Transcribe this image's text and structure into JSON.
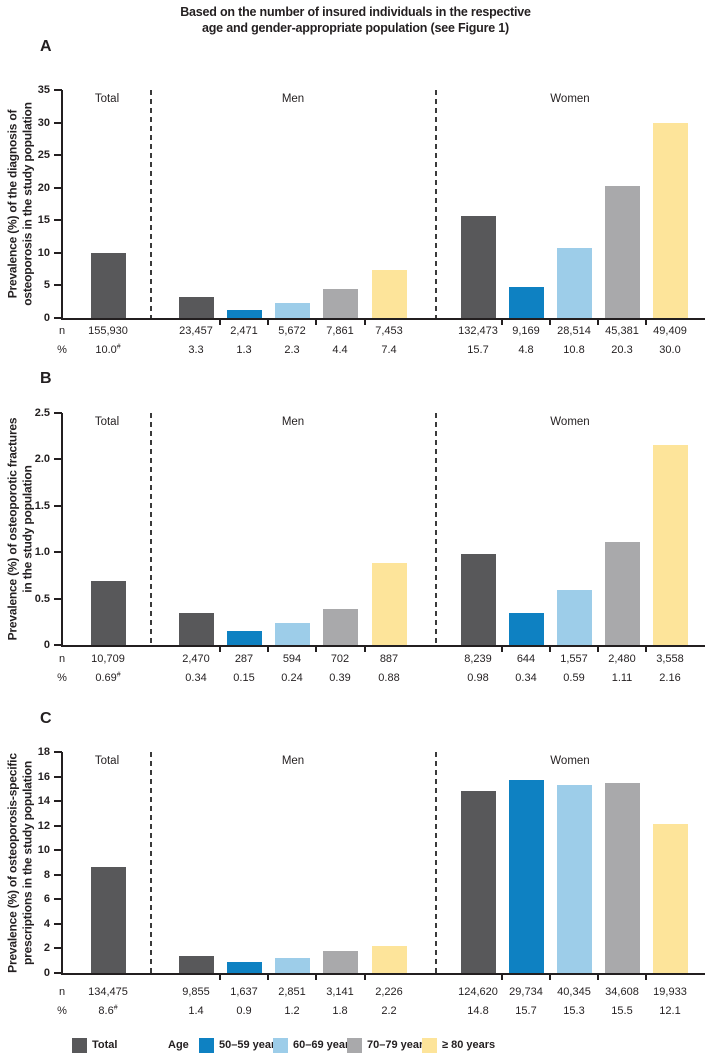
{
  "figure_title": {
    "line1": "Based on the number of insured individuals in the respective",
    "line2": "age and gender-appropriate population (see Figure 1)"
  },
  "colors": {
    "total": "#58585a",
    "age_50_59": "#0e81c2",
    "age_60_69": "#9dcde9",
    "age_70_79": "#a9a9ab",
    "age_80_plus": "#fde49a",
    "axis": "#231f20"
  },
  "row_labels": {
    "n": "n",
    "pct": "%"
  },
  "legend": {
    "total_label": "Total",
    "age_label": "Age",
    "items": [
      {
        "label": "50–59 years",
        "color": "age_50_59"
      },
      {
        "label": "60–69 years",
        "color": "age_60_69"
      },
      {
        "label": "70–79 years",
        "color": "age_70_79"
      },
      {
        "label": "≥ 80 years",
        "color": "age_80_plus"
      }
    ]
  },
  "chart_data": [
    {
      "type": "bar",
      "panel": "A",
      "ylabel": [
        "Prevalence (%) of the diagnosis of",
        "osteoporosis in the study population"
      ],
      "ylim": [
        0,
        35
      ],
      "ytick_values": [
        0,
        5,
        10,
        15,
        20,
        25,
        30,
        35
      ],
      "ytick_labels": [
        "0",
        "5",
        "10",
        "15",
        "20",
        "25",
        "30",
        "35"
      ],
      "groups": [
        {
          "label": "Total",
          "bars": [
            {
              "series": "total",
              "value": 10.0,
              "n": "155,930",
              "pct": "10.0",
              "pct_note": "#"
            }
          ]
        },
        {
          "label": "Men",
          "bars": [
            {
              "series": "total",
              "value": 3.3,
              "n": "23,457",
              "pct": "3.3"
            },
            {
              "series": "age_50_59",
              "value": 1.3,
              "n": "2,471",
              "pct": "1.3"
            },
            {
              "series": "age_60_69",
              "value": 2.3,
              "n": "5,672",
              "pct": "2.3"
            },
            {
              "series": "age_70_79",
              "value": 4.4,
              "n": "7,861",
              "pct": "4.4"
            },
            {
              "series": "age_80_plus",
              "value": 7.4,
              "n": "7,453",
              "pct": "7.4"
            }
          ]
        },
        {
          "label": "Women",
          "bars": [
            {
              "series": "total",
              "value": 15.7,
              "n": "132,473",
              "pct": "15.7"
            },
            {
              "series": "age_50_59",
              "value": 4.8,
              "n": "9,169",
              "pct": "4.8"
            },
            {
              "series": "age_60_69",
              "value": 10.8,
              "n": "28,514",
              "pct": "10.8"
            },
            {
              "series": "age_70_79",
              "value": 20.3,
              "n": "45,381",
              "pct": "20.3"
            },
            {
              "series": "age_80_plus",
              "value": 30.0,
              "n": "49,409",
              "pct": "30.0"
            }
          ]
        }
      ]
    },
    {
      "type": "bar",
      "panel": "B",
      "ylabel": [
        "Prevalence (%) of osteoporotic fractures",
        "in the study population"
      ],
      "ylim": [
        0,
        2.5
      ],
      "ytick_values": [
        0,
        0.5,
        1.0,
        1.5,
        2.0,
        2.5
      ],
      "ytick_labels": [
        "0",
        "0.5",
        "1.0",
        "1.5",
        "2.0",
        "2.5"
      ],
      "groups": [
        {
          "label": "Total",
          "bars": [
            {
              "series": "total",
              "value": 0.69,
              "n": "10,709",
              "pct": "0.69",
              "pct_note": "#"
            }
          ]
        },
        {
          "label": "Men",
          "bars": [
            {
              "series": "total",
              "value": 0.34,
              "n": "2,470",
              "pct": "0.34"
            },
            {
              "series": "age_50_59",
              "value": 0.15,
              "n": "287",
              "pct": "0.15"
            },
            {
              "series": "age_60_69",
              "value": 0.24,
              "n": "594",
              "pct": "0.24"
            },
            {
              "series": "age_70_79",
              "value": 0.39,
              "n": "702",
              "pct": "0.39"
            },
            {
              "series": "age_80_plus",
              "value": 0.88,
              "n": "887",
              "pct": "0.88"
            }
          ]
        },
        {
          "label": "Women",
          "bars": [
            {
              "series": "total",
              "value": 0.98,
              "n": "8,239",
              "pct": "0.98"
            },
            {
              "series": "age_50_59",
              "value": 0.34,
              "n": "644",
              "pct": "0.34"
            },
            {
              "series": "age_60_69",
              "value": 0.59,
              "n": "1,557",
              "pct": "0.59"
            },
            {
              "series": "age_70_79",
              "value": 1.11,
              "n": "2,480",
              "pct": "1.11"
            },
            {
              "series": "age_80_plus",
              "value": 2.16,
              "n": "3,558",
              "pct": "2.16"
            }
          ]
        }
      ]
    },
    {
      "type": "bar",
      "panel": "C",
      "ylabel": [
        "Prevalence (%) of osteoporosis-specific",
        "prescriptions in the study population"
      ],
      "ylim": [
        0,
        18
      ],
      "ytick_values": [
        0,
        2,
        4,
        6,
        8,
        10,
        12,
        14,
        16,
        18
      ],
      "ytick_labels": [
        "0",
        "2",
        "4",
        "6",
        "8",
        "10",
        "12",
        "14",
        "16",
        "18"
      ],
      "groups": [
        {
          "label": "Total",
          "bars": [
            {
              "series": "total",
              "value": 8.6,
              "n": "134,475",
              "pct": "8.6",
              "pct_note": "#"
            }
          ]
        },
        {
          "label": "Men",
          "bars": [
            {
              "series": "total",
              "value": 1.4,
              "n": "9,855",
              "pct": "1.4"
            },
            {
              "series": "age_50_59",
              "value": 0.9,
              "n": "1,637",
              "pct": "0.9"
            },
            {
              "series": "age_60_69",
              "value": 1.2,
              "n": "2,851",
              "pct": "1.2"
            },
            {
              "series": "age_70_79",
              "value": 1.8,
              "n": "3,141",
              "pct": "1.8"
            },
            {
              "series": "age_80_plus",
              "value": 2.2,
              "n": "2,226",
              "pct": "2.2"
            }
          ]
        },
        {
          "label": "Women",
          "bars": [
            {
              "series": "total",
              "value": 14.8,
              "n": "124,620",
              "pct": "14.8"
            },
            {
              "series": "age_50_59",
              "value": 15.7,
              "n": "29,734",
              "pct": "15.7"
            },
            {
              "series": "age_60_69",
              "value": 15.3,
              "n": "40,345",
              "pct": "15.3"
            },
            {
              "series": "age_70_79",
              "value": 15.5,
              "n": "34,608",
              "pct": "15.5"
            },
            {
              "series": "age_80_plus",
              "value": 12.1,
              "n": "19,933",
              "pct": "12.1"
            }
          ]
        }
      ]
    }
  ]
}
